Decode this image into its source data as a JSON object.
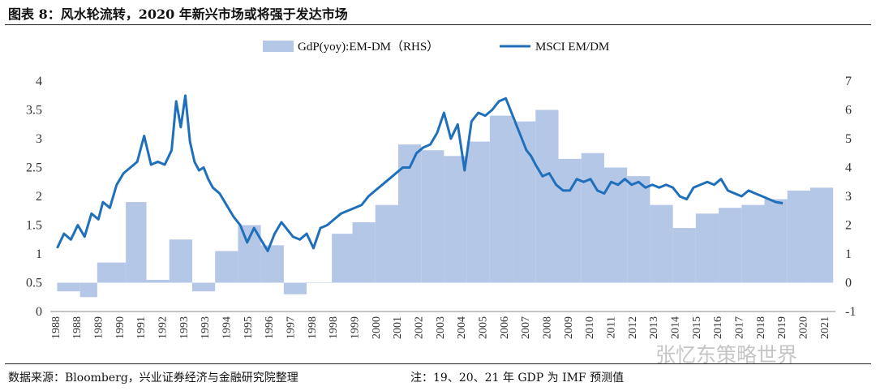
{
  "header": {
    "title": "图表 8：风水轮流转，2020 年新兴市场或将强于发达市场"
  },
  "footer": {
    "source": "数据来源：Bloomberg，兴业证券经济与金融研究院整理",
    "note": "注：19、20、21 年 GDP 为 IMF 预测值"
  },
  "watermark": {
    "text": "张忆东策略世界",
    "icon": "wechat-icon"
  },
  "chart_data": {
    "type": "area+line",
    "title": "风水轮流转，2020 年新兴市场或将强于发达市场",
    "legend_position": "top-center",
    "series": [
      {
        "name": "GdP(yoy):EM-DM（RHS）",
        "kind": "step-area",
        "axis": "right",
        "color": "#b4c7e7",
        "x": [
          1988.0,
          1989.0,
          1989.75,
          1991.0,
          1991.9,
          1992.9,
          1993.9,
          1994.9,
          1995.9,
          1996.9,
          1997.9,
          1998.9,
          2000.0,
          2000.9,
          2001.9,
          2002.9,
          2003.9,
          2004.9,
          2005.9,
          2006.9,
          2007.9,
          2008.9,
          2009.9,
          2010.9,
          2011.9,
          2012.9,
          2013.9,
          2014.9,
          2015.9,
          2016.9,
          2017.9,
          2018.9,
          2019.9,
          2020.9
        ],
        "values": [
          -0.3,
          -0.5,
          0.7,
          2.8,
          0.1,
          1.5,
          -0.3,
          1.1,
          2.0,
          1.3,
          -0.4,
          0.0,
          1.7,
          2.1,
          2.7,
          4.8,
          4.6,
          4.4,
          4.9,
          5.8,
          5.6,
          6.0,
          4.3,
          4.5,
          4.0,
          3.7,
          2.7,
          1.9,
          2.4,
          2.6,
          2.7,
          2.9,
          3.2,
          3.3
        ],
        "x_end": 2021.9
      },
      {
        "name": "MSCI EM/DM",
        "kind": "line",
        "axis": "left",
        "color": "#1f6fba",
        "x": [
          1988.0,
          1988.3,
          1988.6,
          1988.9,
          1989.2,
          1989.5,
          1989.8,
          1990.0,
          1990.3,
          1990.6,
          1990.9,
          1991.2,
          1991.5,
          1991.8,
          1992.1,
          1992.4,
          1992.7,
          1993.0,
          1993.2,
          1993.4,
          1993.6,
          1993.8,
          1994.0,
          1994.2,
          1994.4,
          1994.6,
          1994.8,
          1995.1,
          1995.4,
          1995.7,
          1996.0,
          1996.3,
          1996.6,
          1996.9,
          1997.2,
          1997.5,
          1997.8,
          1998.0,
          1998.3,
          1998.6,
          1998.9,
          1999.2,
          1999.5,
          1999.8,
          2000.1,
          2000.4,
          2000.7,
          2001.0,
          2001.3,
          2001.6,
          2001.9,
          2002.2,
          2002.5,
          2002.8,
          2003.1,
          2003.4,
          2003.7,
          2004.0,
          2004.3,
          2004.6,
          2004.9,
          2005.2,
          2005.5,
          2005.8,
          2006.1,
          2006.4,
          2006.7,
          2007.0,
          2007.3,
          2007.6,
          2007.9,
          2008.1,
          2008.3,
          2008.5,
          2008.7,
          2008.9,
          2009.2,
          2009.5,
          2009.8,
          2010.1,
          2010.4,
          2010.7,
          2011.0,
          2011.3,
          2011.6,
          2011.9,
          2012.2,
          2012.5,
          2012.8,
          2013.1,
          2013.4,
          2013.7,
          2014.0,
          2014.3,
          2014.6,
          2014.9,
          2015.2,
          2015.5,
          2015.8,
          2016.1,
          2016.4,
          2016.7,
          2017.0,
          2017.3,
          2017.6,
          2017.9,
          2018.2,
          2018.5,
          2018.8,
          2019.1,
          2019.4,
          2019.7
        ],
        "values": [
          1.1,
          1.35,
          1.25,
          1.5,
          1.3,
          1.7,
          1.6,
          1.9,
          1.8,
          2.2,
          2.4,
          2.5,
          2.6,
          3.05,
          2.55,
          2.6,
          2.55,
          2.8,
          3.65,
          3.2,
          3.75,
          2.95,
          2.6,
          2.45,
          2.5,
          2.3,
          2.15,
          2.05,
          1.85,
          1.65,
          1.5,
          1.2,
          1.45,
          1.25,
          1.05,
          1.35,
          1.55,
          1.45,
          1.3,
          1.25,
          1.35,
          1.1,
          1.45,
          1.5,
          1.6,
          1.7,
          1.75,
          1.8,
          1.85,
          2.0,
          2.1,
          2.2,
          2.3,
          2.4,
          2.5,
          2.5,
          2.75,
          2.85,
          2.9,
          3.1,
          3.45,
          3.0,
          3.25,
          2.45,
          3.3,
          3.45,
          3.4,
          3.5,
          3.65,
          3.7,
          3.4,
          3.2,
          3.0,
          2.8,
          2.7,
          2.55,
          2.35,
          2.4,
          2.2,
          2.1,
          2.1,
          2.3,
          2.25,
          2.3,
          2.1,
          2.05,
          2.25,
          2.2,
          2.3,
          2.2,
          2.25,
          2.15,
          2.2,
          2.15,
          2.2,
          2.15,
          2.0,
          1.95,
          2.15,
          2.2,
          2.25,
          2.2,
          2.3,
          2.1,
          2.05,
          2.0,
          2.1,
          2.05,
          2.0,
          1.95,
          1.9,
          1.88
        ]
      }
    ],
    "x_tick_labels": [
      "1988",
      "1988",
      "1989",
      "1990",
      "1991",
      "1992",
      "1993",
      "1993",
      "1994",
      "1995",
      "1996",
      "1997",
      "1998",
      "1998",
      "1999",
      "2000",
      "2001",
      "2002",
      "2003",
      "2004",
      "2005",
      "2006",
      "2007",
      "2008",
      "2009",
      "2010",
      "2011",
      "2012",
      "2013",
      "2014",
      "2015",
      "2016",
      "2017",
      "2018",
      "2019",
      "2020",
      "2021"
    ],
    "y_left": {
      "ticks": [
        "0",
        "0.5",
        "1",
        "1.5",
        "2",
        "2.5",
        "3",
        "3.5",
        "4"
      ],
      "ylim": [
        0,
        4
      ]
    },
    "y_right": {
      "ticks": [
        "-1",
        "0",
        "1",
        "2",
        "3",
        "4",
        "5",
        "6",
        "7"
      ],
      "ylim": [
        -1,
        7
      ]
    },
    "x_range": [
      1987.7,
      2022.0
    ]
  }
}
